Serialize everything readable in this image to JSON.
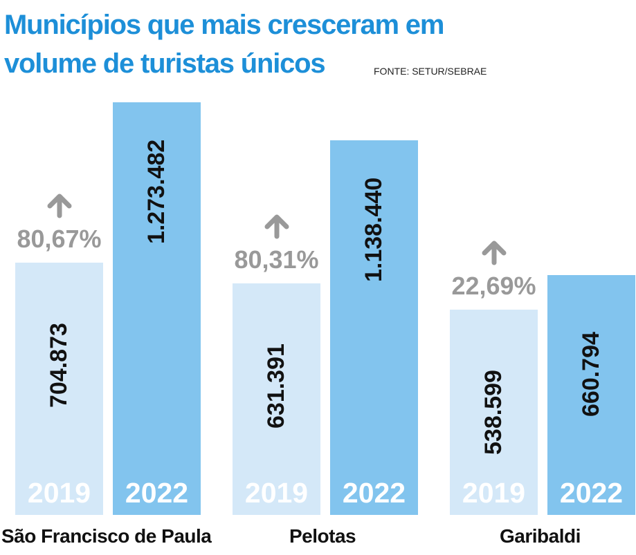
{
  "title_line1": "Municípios que mais cresceram em",
  "title_line2": "volume de turistas únicos",
  "source": "FONTE: SETUR/SEBRAE",
  "colors": {
    "title": "#1d8fd8",
    "bar_2019": "#d4e8f8",
    "bar_2022": "#82c4ee",
    "percent": "#999999"
  },
  "chart_data": {
    "type": "bar",
    "title": "Municípios que mais cresceram em volume de turistas únicos",
    "categories": [
      "São Francisco de Paula",
      "Pelotas",
      "Garibaldi"
    ],
    "series": [
      {
        "name": "2019",
        "values": [
          704873,
          631391,
          538599
        ],
        "labels": [
          "704.873",
          "631.391",
          "538.599"
        ]
      },
      {
        "name": "2022",
        "values": [
          1273482,
          1138440,
          660794
        ],
        "labels": [
          "1.273.482",
          "1.138.440",
          "660.794"
        ]
      }
    ],
    "growth": [
      "80,67%",
      "80,31%",
      "22,69%"
    ]
  }
}
